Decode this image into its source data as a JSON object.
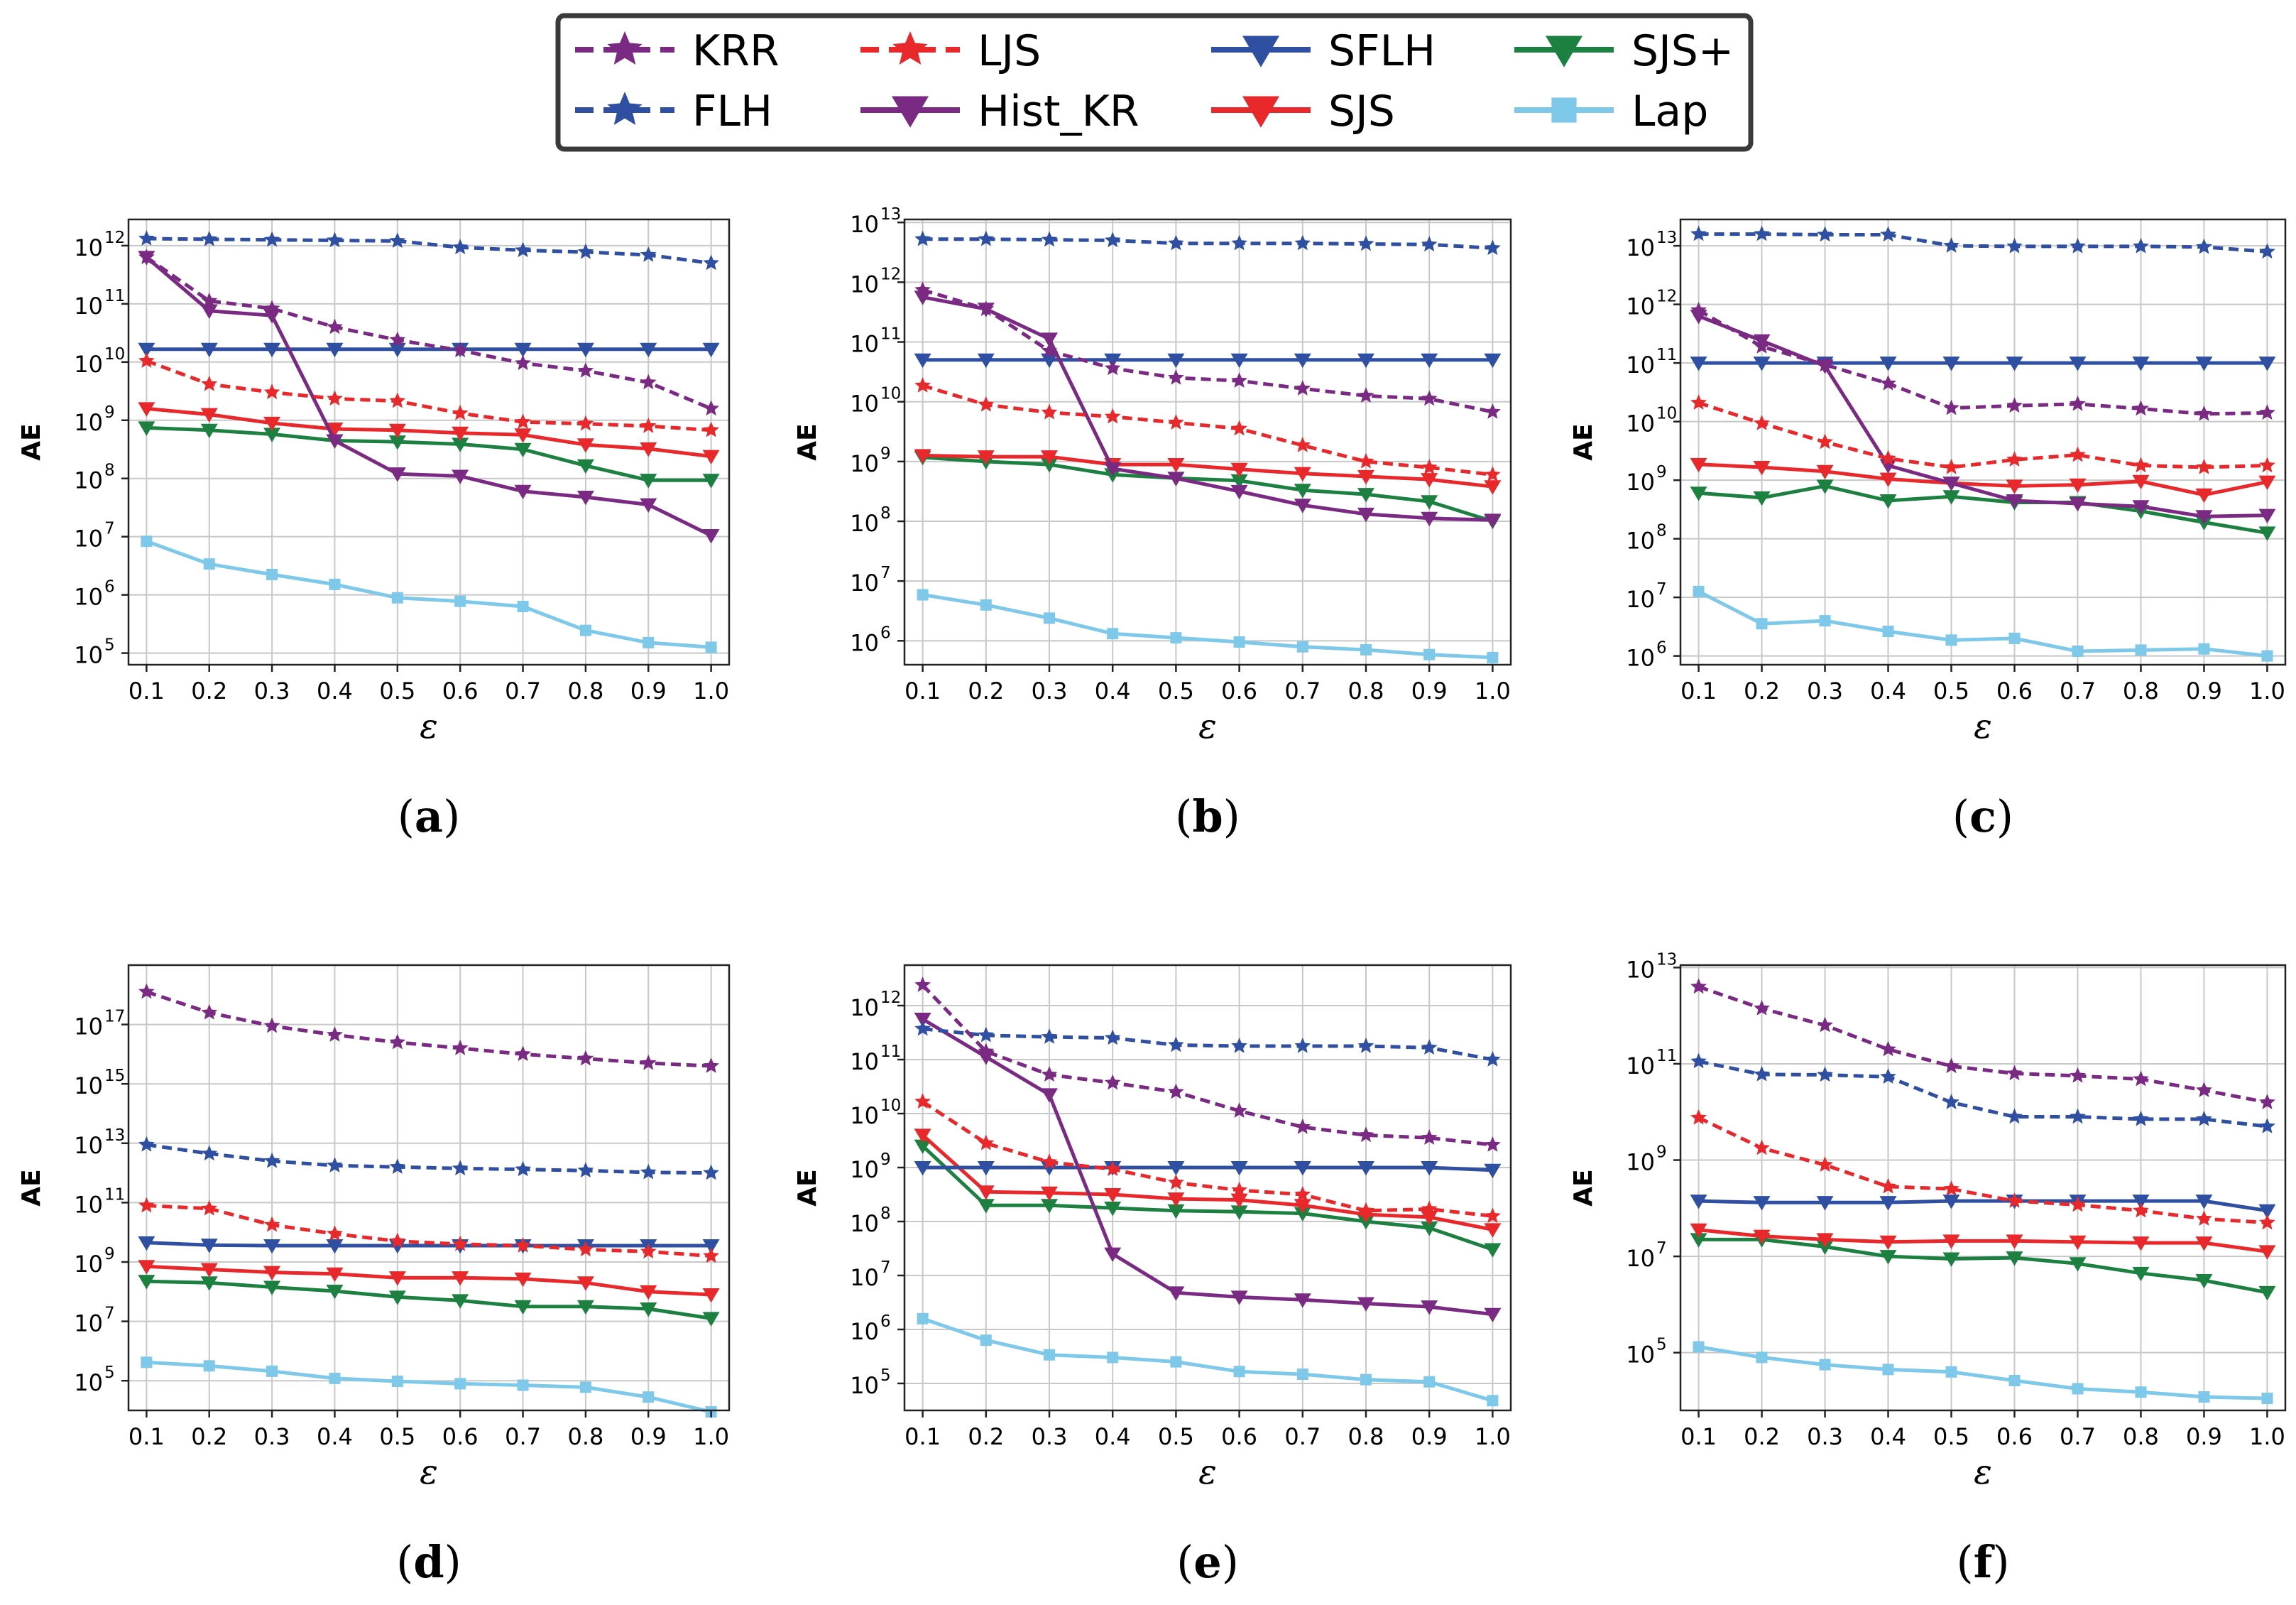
{
  "legend": {
    "entries": [
      {
        "key": "KRR",
        "label": "KRR"
      },
      {
        "key": "LJS",
        "label": "LJS"
      },
      {
        "key": "SFLH",
        "label": "SFLH"
      },
      {
        "key": "SJSp",
        "label": "SJS+"
      },
      {
        "key": "FLH",
        "label": "FLH"
      },
      {
        "key": "HistKR",
        "label": "Hist_KR"
      },
      {
        "key": "SJS",
        "label": "SJS"
      },
      {
        "key": "Lap",
        "label": "Lap"
      }
    ]
  },
  "series_styles": {
    "KRR": {
      "color": "#7b2a83",
      "dash": true,
      "marker": "star"
    },
    "FLH": {
      "color": "#2f4fa2",
      "dash": true,
      "marker": "star"
    },
    "LJS": {
      "color": "#e8282b",
      "dash": true,
      "marker": "star"
    },
    "HistKR": {
      "color": "#7b2a83",
      "dash": false,
      "marker": "tri"
    },
    "SFLH": {
      "color": "#2f4fa2",
      "dash": false,
      "marker": "tri"
    },
    "SJS": {
      "color": "#e8282b",
      "dash": false,
      "marker": "tri"
    },
    "SJSp": {
      "color": "#1c8040",
      "dash": false,
      "marker": "tri"
    },
    "Lap": {
      "color": "#7ec8ea",
      "dash": false,
      "marker": "square"
    }
  },
  "chart_data": [
    {
      "id": "a",
      "caption": "(a)",
      "type": "line",
      "yscale": "log",
      "ylabel": "AE",
      "xlabel": "ε",
      "x": [
        0.1,
        0.2,
        0.3,
        0.4,
        0.5,
        0.6,
        0.7,
        0.8,
        0.9,
        1.0
      ],
      "xticklabels": [
        "0.1",
        "0.2",
        "0.3",
        "0.4",
        "0.5",
        "0.6",
        "0.7",
        "0.8",
        "0.9",
        "1.0"
      ],
      "ylim_log10": [
        4.8,
        12.45
      ],
      "yticks": [
        5,
        6,
        7,
        8,
        9,
        10,
        11,
        12
      ],
      "series": [
        {
          "key": "FLH",
          "name": "FLH",
          "log10": [
            12.12,
            12.11,
            12.1,
            12.09,
            12.08,
            11.97,
            11.92,
            11.89,
            11.84,
            11.7
          ]
        },
        {
          "key": "KRR",
          "name": "KRR",
          "log10": [
            11.8,
            11.05,
            10.92,
            10.6,
            10.38,
            10.2,
            9.98,
            9.85,
            9.65,
            9.2
          ]
        },
        {
          "key": "HistKR",
          "name": "Hist_KR",
          "log10": [
            11.8,
            10.88,
            10.8,
            8.65,
            8.08,
            8.04,
            7.78,
            7.68,
            7.55,
            7.02
          ]
        },
        {
          "key": "SFLH",
          "name": "SFLH",
          "log10": [
            10.22,
            10.22,
            10.22,
            10.22,
            10.22,
            10.22,
            10.22,
            10.22,
            10.22,
            10.22
          ]
        },
        {
          "key": "LJS",
          "name": "LJS",
          "log10": [
            10.02,
            9.62,
            9.48,
            9.37,
            9.33,
            9.12,
            8.97,
            8.94,
            8.9,
            8.83
          ]
        },
        {
          "key": "SJS",
          "name": "SJS",
          "log10": [
            9.2,
            9.1,
            8.95,
            8.85,
            8.83,
            8.78,
            8.75,
            8.58,
            8.51,
            8.38
          ]
        },
        {
          "key": "SJSp",
          "name": "SJS+",
          "log10": [
            8.87,
            8.83,
            8.76,
            8.65,
            8.63,
            8.59,
            8.5,
            8.22,
            7.97,
            7.97
          ]
        },
        {
          "key": "Lap",
          "name": "Lap",
          "log10": [
            6.92,
            6.53,
            6.35,
            6.18,
            5.95,
            5.89,
            5.8,
            5.39,
            5.18,
            5.1
          ]
        }
      ]
    },
    {
      "id": "b",
      "caption": "(b)",
      "type": "line",
      "yscale": "log",
      "ylabel": "AE",
      "xlabel": "ε",
      "x": [
        0.1,
        0.2,
        0.3,
        0.4,
        0.5,
        0.6,
        0.7,
        0.8,
        0.9,
        1.0
      ],
      "xticklabels": [
        "0.1",
        "0.2",
        "0.3",
        "0.4",
        "0.5",
        "0.6",
        "0.7",
        "0.8",
        "0.9",
        "1.0"
      ],
      "ylim_log10": [
        5.6,
        13.05
      ],
      "yticks": [
        6,
        7,
        8,
        9,
        10,
        11,
        12,
        13
      ],
      "series": [
        {
          "key": "FLH",
          "name": "FLH",
          "log10": [
            12.72,
            12.72,
            12.71,
            12.7,
            12.65,
            12.65,
            12.65,
            12.64,
            12.63,
            12.57
          ]
        },
        {
          "key": "KRR",
          "name": "KRR",
          "log10": [
            11.87,
            11.55,
            10.85,
            10.56,
            10.4,
            10.35,
            10.22,
            10.1,
            10.05,
            9.83
          ]
        },
        {
          "key": "HistKR",
          "name": "Hist_KR",
          "log10": [
            11.75,
            11.55,
            11.05,
            8.88,
            8.72,
            8.5,
            8.27,
            8.12,
            8.05,
            8.02
          ]
        },
        {
          "key": "SFLH",
          "name": "SFLH",
          "log10": [
            10.7,
            10.7,
            10.7,
            10.7,
            10.7,
            10.7,
            10.7,
            10.7,
            10.7,
            10.7
          ]
        },
        {
          "key": "LJS",
          "name": "LJS",
          "log10": [
            10.27,
            9.95,
            9.82,
            9.75,
            9.65,
            9.55,
            9.27,
            9.0,
            8.9,
            8.78
          ]
        },
        {
          "key": "SJS",
          "name": "SJS",
          "log10": [
            9.1,
            9.08,
            9.08,
            8.95,
            8.95,
            8.87,
            8.8,
            8.75,
            8.7,
            8.58
          ]
        },
        {
          "key": "SJSp",
          "name": "SJS+",
          "log10": [
            9.07,
            9.0,
            8.95,
            8.78,
            8.72,
            8.68,
            8.52,
            8.45,
            8.33,
            8.0
          ]
        },
        {
          "key": "Lap",
          "name": "Lap",
          "log10": [
            6.77,
            6.6,
            6.38,
            6.12,
            6.05,
            5.98,
            5.9,
            5.85,
            5.77,
            5.72
          ]
        }
      ]
    },
    {
      "id": "c",
      "caption": "(c)",
      "type": "line",
      "yscale": "log",
      "ylabel": "AE",
      "xlabel": "ε",
      "x": [
        0.1,
        0.2,
        0.3,
        0.4,
        0.5,
        0.6,
        0.7,
        0.8,
        0.9,
        1.0
      ],
      "xticklabels": [
        "0.1",
        "0.2",
        "0.3",
        "0.4",
        "0.5",
        "0.6",
        "0.7",
        "0.8",
        "0.9",
        "1.0"
      ],
      "ylim_log10": [
        5.85,
        13.45
      ],
      "yticks": [
        6,
        7,
        8,
        9,
        10,
        11,
        12,
        13
      ],
      "series": [
        {
          "key": "FLH",
          "name": "FLH",
          "log10": [
            13.2,
            13.2,
            13.19,
            13.19,
            13.0,
            12.99,
            12.99,
            12.99,
            12.98,
            12.9
          ]
        },
        {
          "key": "KRR",
          "name": "KRR",
          "log10": [
            11.9,
            11.28,
            10.97,
            10.65,
            10.23,
            10.27,
            10.3,
            10.22,
            10.13,
            10.15
          ]
        },
        {
          "key": "HistKR",
          "name": "Hist_KR",
          "log10": [
            11.8,
            11.38,
            10.95,
            9.25,
            8.95,
            8.65,
            8.6,
            8.55,
            8.38,
            8.4
          ]
        },
        {
          "key": "SFLH",
          "name": "SFLH",
          "log10": [
            11.0,
            11.0,
            11.0,
            11.0,
            11.0,
            11.0,
            11.0,
            11.0,
            11.0,
            11.0
          ]
        },
        {
          "key": "LJS",
          "name": "LJS",
          "log10": [
            10.32,
            9.97,
            9.65,
            9.37,
            9.22,
            9.35,
            9.43,
            9.25,
            9.22,
            9.25
          ]
        },
        {
          "key": "SJS",
          "name": "SJS",
          "log10": [
            9.27,
            9.22,
            9.15,
            9.02,
            8.95,
            8.9,
            8.92,
            8.98,
            8.75,
            8.97
          ]
        },
        {
          "key": "SJSp",
          "name": "SJS+",
          "log10": [
            8.78,
            8.7,
            8.9,
            8.65,
            8.72,
            8.62,
            8.62,
            8.47,
            8.28,
            8.1
          ]
        },
        {
          "key": "Lap",
          "name": "Lap",
          "log10": [
            7.1,
            6.55,
            6.6,
            6.42,
            6.27,
            6.3,
            6.08,
            6.1,
            6.12,
            6.0
          ]
        }
      ]
    },
    {
      "id": "d",
      "caption": "(d)",
      "type": "line",
      "yscale": "log",
      "ylabel": "AE",
      "xlabel": "ε",
      "x": [
        0.1,
        0.2,
        0.3,
        0.4,
        0.5,
        0.6,
        0.7,
        0.8,
        0.9,
        1.0
      ],
      "xticklabels": [
        "0.1",
        "0.2",
        "0.3",
        "0.4",
        "0.5",
        "0.6",
        "0.7",
        "0.8",
        "0.9",
        "1.0"
      ],
      "ylim_log10": [
        4.0,
        19.0
      ],
      "yticks": [
        5,
        7,
        9,
        11,
        13,
        15,
        17
      ],
      "series": [
        {
          "key": "KRR",
          "name": "KRR",
          "log10": [
            18.1,
            17.4,
            16.95,
            16.65,
            16.4,
            16.2,
            16.0,
            15.85,
            15.7,
            15.6
          ]
        },
        {
          "key": "FLH",
          "name": "FLH",
          "log10": [
            12.95,
            12.65,
            12.4,
            12.25,
            12.2,
            12.15,
            12.12,
            12.08,
            12.02,
            12.0
          ]
        },
        {
          "key": "LJS",
          "name": "LJS",
          "log10": [
            10.9,
            10.8,
            10.25,
            9.95,
            9.7,
            9.6,
            9.55,
            9.42,
            9.35,
            9.2
          ]
        },
        {
          "key": "SFLH",
          "name": "SFLH",
          "log10": [
            9.65,
            9.57,
            9.55,
            9.55,
            9.55,
            9.55,
            9.55,
            9.55,
            9.55,
            9.55
          ]
        },
        {
          "key": "SJS",
          "name": "SJS",
          "log10": [
            8.85,
            8.75,
            8.65,
            8.6,
            8.47,
            8.47,
            8.43,
            8.3,
            8.0,
            7.9
          ]
        },
        {
          "key": "SJSp",
          "name": "SJS+",
          "log10": [
            8.35,
            8.3,
            8.15,
            8.02,
            7.82,
            7.7,
            7.5,
            7.5,
            7.42,
            7.1
          ]
        },
        {
          "key": "Lap",
          "name": "Lap",
          "log10": [
            5.62,
            5.5,
            5.32,
            5.08,
            4.98,
            4.9,
            4.85,
            4.78,
            4.45,
            3.95
          ]
        }
      ]
    },
    {
      "id": "e",
      "caption": "(e)",
      "type": "line",
      "yscale": "log",
      "ylabel": "AE",
      "xlabel": "ε",
      "x": [
        0.1,
        0.2,
        0.3,
        0.4,
        0.5,
        0.6,
        0.7,
        0.8,
        0.9,
        1.0
      ],
      "xticklabels": [
        "0.1",
        "0.2",
        "0.3",
        "0.4",
        "0.5",
        "0.6",
        "0.7",
        "0.8",
        "0.9",
        "1.0"
      ],
      "ylim_log10": [
        4.5,
        12.75
      ],
      "yticks": [
        5,
        6,
        7,
        8,
        9,
        10,
        11,
        12
      ],
      "series": [
        {
          "key": "KRR",
          "name": "KRR",
          "log10": [
            12.38,
            11.15,
            10.72,
            10.57,
            10.4,
            10.05,
            9.75,
            9.6,
            9.55,
            9.42
          ]
        },
        {
          "key": "HistKR",
          "name": "Hist_KR",
          "log10": [
            11.75,
            11.05,
            10.35,
            7.4,
            6.68,
            6.6,
            6.55,
            6.48,
            6.42,
            6.28
          ]
        },
        {
          "key": "FLH",
          "name": "FLH",
          "log10": [
            11.57,
            11.45,
            11.42,
            11.4,
            11.27,
            11.25,
            11.25,
            11.25,
            11.22,
            11.0
          ]
        },
        {
          "key": "LJS",
          "name": "LJS",
          "log10": [
            10.22,
            9.45,
            9.1,
            8.97,
            8.72,
            8.58,
            8.5,
            8.2,
            8.23,
            8.1
          ]
        },
        {
          "key": "SJS",
          "name": "SJS",
          "log10": [
            9.6,
            8.55,
            8.53,
            8.5,
            8.42,
            8.4,
            8.3,
            8.13,
            8.08,
            7.85
          ]
        },
        {
          "key": "SJSp",
          "name": "SJS+",
          "log10": [
            9.4,
            8.3,
            8.3,
            8.25,
            8.2,
            8.18,
            8.15,
            8.0,
            7.88,
            7.48
          ]
        },
        {
          "key": "SFLH",
          "name": "SFLH",
          "log10": [
            9.0,
            9.0,
            9.0,
            9.0,
            9.0,
            9.0,
            9.0,
            9.0,
            9.0,
            8.95
          ]
        },
        {
          "key": "Lap",
          "name": "Lap",
          "log10": [
            6.2,
            5.8,
            5.53,
            5.48,
            5.4,
            5.22,
            5.17,
            5.07,
            5.03,
            4.68
          ]
        }
      ]
    },
    {
      "id": "f",
      "caption": "(f)",
      "type": "line",
      "yscale": "log",
      "ylabel": "AE",
      "xlabel": "ε",
      "x": [
        0.1,
        0.2,
        0.3,
        0.4,
        0.5,
        0.6,
        0.7,
        0.8,
        0.9,
        1.0
      ],
      "xticklabels": [
        "0.1",
        "0.2",
        "0.3",
        "0.4",
        "0.5",
        "0.6",
        "0.7",
        "0.8",
        "0.9",
        "1.0"
      ],
      "ylim_log10": [
        3.8,
        13.05
      ],
      "yticks": [
        5,
        7,
        9,
        11,
        13
      ],
      "series": [
        {
          "key": "KRR",
          "name": "KRR",
          "log10": [
            12.6,
            12.15,
            11.8,
            11.3,
            10.95,
            10.8,
            10.75,
            10.68,
            10.45,
            10.2
          ]
        },
        {
          "key": "FLH",
          "name": "FLH",
          "log10": [
            11.05,
            10.78,
            10.77,
            10.73,
            10.2,
            9.9,
            9.9,
            9.85,
            9.85,
            9.7
          ]
        },
        {
          "key": "LJS",
          "name": "LJS",
          "log10": [
            9.88,
            9.25,
            8.9,
            8.45,
            8.4,
            8.15,
            8.07,
            7.95,
            7.78,
            7.7
          ]
        },
        {
          "key": "SFLH",
          "name": "SFLH",
          "log10": [
            8.15,
            8.12,
            8.12,
            8.12,
            8.15,
            8.15,
            8.15,
            8.15,
            8.15,
            7.95
          ]
        },
        {
          "key": "SJS",
          "name": "SJS",
          "log10": [
            7.55,
            7.42,
            7.35,
            7.3,
            7.32,
            7.32,
            7.3,
            7.28,
            7.28,
            7.1
          ]
        },
        {
          "key": "SJSp",
          "name": "SJS+",
          "log10": [
            7.35,
            7.35,
            7.2,
            7.0,
            6.95,
            6.97,
            6.85,
            6.65,
            6.5,
            6.25
          ]
        },
        {
          "key": "Lap",
          "name": "Lap",
          "log10": [
            5.12,
            4.9,
            4.75,
            4.65,
            4.6,
            4.42,
            4.25,
            4.18,
            4.08,
            4.05
          ]
        }
      ]
    }
  ]
}
